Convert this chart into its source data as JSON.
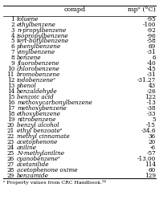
{
  "title_col1": "compd",
  "title_col2": "mpᵃ (°C)",
  "footnote": "ᵃ Property values from CRC Handbook.²⁴",
  "rows": [
    [
      "1",
      "toluene",
      "-95"
    ],
    [
      "2",
      "ethylbenzene",
      "-100"
    ],
    [
      "3",
      "n-propylbenzene",
      "-92"
    ],
    [
      "4",
      "isopropylbenzene",
      "-96"
    ],
    [
      "5",
      "tert-butylbenzene",
      "-58"
    ],
    [
      "6",
      "phenylbenzene",
      "69"
    ],
    [
      "7",
      "vinylbenzene",
      "-31"
    ],
    [
      "8",
      "benzene",
      "6"
    ],
    [
      "9",
      "fluorobenzene",
      "-40"
    ],
    [
      "10",
      "chlorobenzene",
      "-45"
    ],
    [
      "11",
      "bromobenzene",
      "-31"
    ],
    [
      "12",
      "iodobenzeneᵃ",
      "-31.27"
    ],
    [
      "13",
      "phenol",
      "43"
    ],
    [
      "14",
      "benzaldehyde",
      "-26"
    ],
    [
      "15",
      "benzoic acid",
      "122"
    ],
    [
      "16",
      "methoxycarbonylbenzene",
      "-13"
    ],
    [
      "17",
      "methoxybenzene",
      "-38"
    ],
    [
      "18",
      "ethoxybenzene",
      "-33"
    ],
    [
      "19",
      "nitrobenzene",
      "5"
    ],
    [
      "20",
      "benzyl alcohol",
      "-15"
    ],
    [
      "21",
      "ethyl benzoateᵃ",
      "-34.6"
    ],
    [
      "22",
      "methyl cinnamate",
      "36"
    ],
    [
      "23",
      "acetophenone",
      "20"
    ],
    [
      "24",
      "aniline",
      "-6"
    ],
    [
      "25",
      "N-methylaniline",
      "-57"
    ],
    [
      "26",
      "cyanobenzeneᵃ",
      "-13.00"
    ],
    [
      "27",
      "acetanilide",
      "114"
    ],
    [
      "28",
      "acetophenone oxime",
      "60"
    ],
    [
      "29",
      "benzamide",
      "129"
    ]
  ],
  "bg_color": "#ffffff",
  "text_color": "#000000",
  "line_color": "#000000",
  "font_size": 5.2,
  "header_font_size": 5.8,
  "footnote_font_size": 4.5
}
